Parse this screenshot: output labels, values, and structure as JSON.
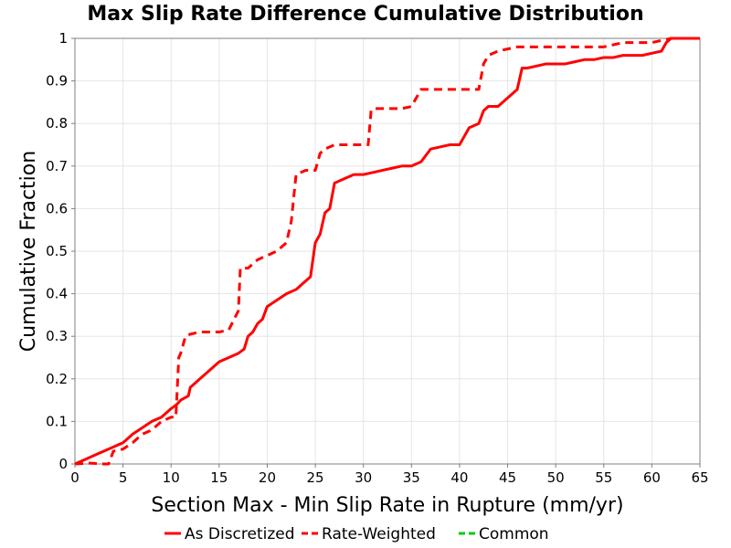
{
  "chart_data": {
    "type": "line",
    "title": "Max Slip Rate Difference Cumulative Distribution",
    "xlabel": "Section Max - Min Slip Rate in Rupture (mm/yr)",
    "ylabel": "Cumulative Fraction",
    "xlim": [
      0,
      65
    ],
    "ylim": [
      0,
      1
    ],
    "x_ticks": [
      0,
      5,
      10,
      15,
      20,
      25,
      30,
      35,
      40,
      45,
      50,
      55,
      60,
      65
    ],
    "y_ticks": [
      0,
      0.1,
      0.2,
      0.3,
      0.4,
      0.5,
      0.6,
      0.7,
      0.8,
      0.9,
      1
    ],
    "x_tick_labels": [
      "0",
      "5",
      "10",
      "15",
      "20",
      "25",
      "30",
      "35",
      "40",
      "45",
      "50",
      "55",
      "60",
      "65"
    ],
    "y_tick_labels": [
      "0",
      "0.1",
      "0.2",
      "0.3",
      "0.4",
      "0.5",
      "0.6",
      "0.7",
      "0.8",
      "0.9",
      "1"
    ],
    "grid": true,
    "legend_position": "bottom",
    "series": [
      {
        "name": "As Discretized",
        "color": "#ff0000",
        "dash": "solid",
        "points": [
          [
            0,
            0
          ],
          [
            1,
            0.01
          ],
          [
            2,
            0.02
          ],
          [
            3,
            0.03
          ],
          [
            4,
            0.04
          ],
          [
            5,
            0.05
          ],
          [
            6,
            0.07
          ],
          [
            7,
            0.085
          ],
          [
            8,
            0.1
          ],
          [
            9,
            0.11
          ],
          [
            10,
            0.13
          ],
          [
            10.6,
            0.14
          ],
          [
            11,
            0.15
          ],
          [
            11.8,
            0.16
          ],
          [
            12,
            0.18
          ],
          [
            12.5,
            0.19
          ],
          [
            13,
            0.2
          ],
          [
            14,
            0.22
          ],
          [
            15,
            0.24
          ],
          [
            16,
            0.25
          ],
          [
            17,
            0.26
          ],
          [
            17.6,
            0.27
          ],
          [
            18,
            0.3
          ],
          [
            18.5,
            0.31
          ],
          [
            19,
            0.33
          ],
          [
            19.5,
            0.34
          ],
          [
            20,
            0.37
          ],
          [
            21,
            0.385
          ],
          [
            22,
            0.4
          ],
          [
            23,
            0.41
          ],
          [
            24,
            0.43
          ],
          [
            24.5,
            0.44
          ],
          [
            25,
            0.52
          ],
          [
            25.5,
            0.54
          ],
          [
            26,
            0.59
          ],
          [
            26.5,
            0.6
          ],
          [
            27,
            0.66
          ],
          [
            28,
            0.67
          ],
          [
            29,
            0.68
          ],
          [
            30,
            0.68
          ],
          [
            31,
            0.685
          ],
          [
            32,
            0.69
          ],
          [
            33,
            0.695
          ],
          [
            34,
            0.7
          ],
          [
            35,
            0.7
          ],
          [
            36,
            0.71
          ],
          [
            37,
            0.74
          ],
          [
            38,
            0.745
          ],
          [
            39,
            0.75
          ],
          [
            40,
            0.75
          ],
          [
            41,
            0.79
          ],
          [
            42,
            0.8
          ],
          [
            42.5,
            0.83
          ],
          [
            43,
            0.84
          ],
          [
            44,
            0.84
          ],
          [
            45,
            0.86
          ],
          [
            46,
            0.88
          ],
          [
            46.5,
            0.93
          ],
          [
            47,
            0.93
          ],
          [
            48,
            0.935
          ],
          [
            49,
            0.94
          ],
          [
            50,
            0.94
          ],
          [
            51,
            0.94
          ],
          [
            52,
            0.945
          ],
          [
            53,
            0.95
          ],
          [
            54,
            0.95
          ],
          [
            55,
            0.955
          ],
          [
            56,
            0.955
          ],
          [
            57,
            0.96
          ],
          [
            58,
            0.96
          ],
          [
            59,
            0.96
          ],
          [
            60,
            0.965
          ],
          [
            61,
            0.97
          ],
          [
            61.5,
            0.99
          ],
          [
            62,
            1.0
          ],
          [
            65,
            1.0
          ]
        ]
      },
      {
        "name": "Rate-Weighted",
        "color": "#ff0000",
        "dash": "dashed",
        "points": [
          [
            0,
            0
          ],
          [
            1.5,
            0.002
          ],
          [
            3,
            0.0
          ],
          [
            3.5,
            0.0
          ],
          [
            4,
            0.03
          ],
          [
            5,
            0.035
          ],
          [
            6,
            0.05
          ],
          [
            7,
            0.07
          ],
          [
            8,
            0.08
          ],
          [
            9,
            0.1
          ],
          [
            10,
            0.11
          ],
          [
            10.5,
            0.11
          ],
          [
            10.8,
            0.25
          ],
          [
            11,
            0.26
          ],
          [
            11.5,
            0.3
          ],
          [
            12,
            0.305
          ],
          [
            13,
            0.31
          ],
          [
            14,
            0.31
          ],
          [
            15,
            0.31
          ],
          [
            16,
            0.315
          ],
          [
            17,
            0.36
          ],
          [
            17.2,
            0.46
          ],
          [
            18,
            0.46
          ],
          [
            19,
            0.48
          ],
          [
            20,
            0.49
          ],
          [
            21,
            0.5
          ],
          [
            22,
            0.52
          ],
          [
            22.5,
            0.57
          ],
          [
            23,
            0.68
          ],
          [
            24,
            0.69
          ],
          [
            25,
            0.69
          ],
          [
            25.5,
            0.73
          ],
          [
            26,
            0.74
          ],
          [
            27,
            0.75
          ],
          [
            28,
            0.75
          ],
          [
            29,
            0.75
          ],
          [
            30,
            0.75
          ],
          [
            30.5,
            0.75
          ],
          [
            30.8,
            0.83
          ],
          [
            31,
            0.835
          ],
          [
            32,
            0.835
          ],
          [
            33,
            0.835
          ],
          [
            34,
            0.835
          ],
          [
            35,
            0.84
          ],
          [
            36,
            0.88
          ],
          [
            37,
            0.88
          ],
          [
            38,
            0.88
          ],
          [
            39,
            0.88
          ],
          [
            40,
            0.88
          ],
          [
            41,
            0.88
          ],
          [
            42,
            0.88
          ],
          [
            42.5,
            0.94
          ],
          [
            43,
            0.96
          ],
          [
            44,
            0.97
          ],
          [
            45,
            0.975
          ],
          [
            46,
            0.98
          ],
          [
            47,
            0.98
          ],
          [
            48,
            0.98
          ],
          [
            49,
            0.98
          ],
          [
            50,
            0.98
          ],
          [
            55,
            0.98
          ],
          [
            56,
            0.985
          ],
          [
            57,
            0.99
          ],
          [
            60,
            0.99
          ],
          [
            61,
            0.995
          ],
          [
            62,
            1.0
          ],
          [
            65,
            1.0
          ]
        ]
      },
      {
        "name": "Common",
        "color": "#00cc00",
        "dash": "dashed",
        "points": []
      }
    ]
  },
  "legend": {
    "items": [
      {
        "label": "As Discretized",
        "color": "#ff0000",
        "dash": "solid"
      },
      {
        "label": "Rate-Weighted",
        "color": "#ff0000",
        "dash": "dashed"
      },
      {
        "label": "Common",
        "color": "#00cc00",
        "dash": "dashed"
      }
    ]
  }
}
